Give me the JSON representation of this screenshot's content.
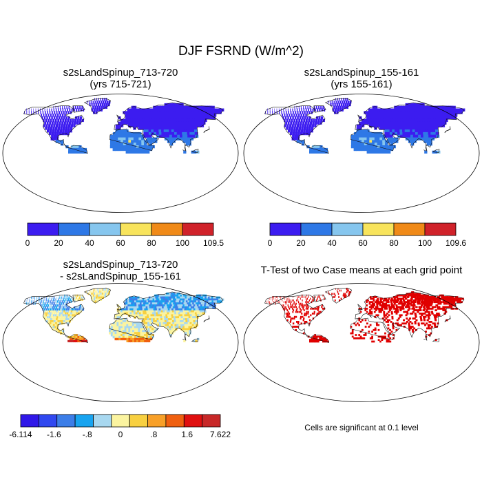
{
  "figure": {
    "title": "DJF FSRND (W/m^2)",
    "note": "Cells are significant at 0.1 level"
  },
  "chart_data": [
    {
      "type": "heatmap",
      "title": "s2sLandSpinup_713-720",
      "subtitle": "(yrs 715-721)",
      "projection": "robinson",
      "colorbar": {
        "labels": [
          "0",
          "20",
          "40",
          "60",
          "80",
          "100",
          "109.5"
        ],
        "colors": [
          "#3c1cf0",
          "#2e78e6",
          "#86c6ee",
          "#f8e45c",
          "#f08a18",
          "#d0222a"
        ]
      }
    },
    {
      "type": "heatmap",
      "title": "s2sLandSpinup_155-161",
      "subtitle": "(yrs 155-161)",
      "projection": "robinson",
      "colorbar": {
        "labels": [
          "0",
          "20",
          "40",
          "60",
          "80",
          "100",
          "109.6"
        ],
        "colors": [
          "#3c1cf0",
          "#2e78e6",
          "#86c6ee",
          "#f8e45c",
          "#f08a18",
          "#d0222a"
        ]
      }
    },
    {
      "type": "heatmap",
      "title": "s2sLandSpinup_713-720",
      "subtitle": "- s2sLandSpinup_155-161",
      "projection": "robinson",
      "colorbar": {
        "labels": [
          "-6.114",
          "-1.6",
          "-.8",
          "0",
          ".8",
          "1.6",
          "7.622"
        ],
        "colors": [
          "#3018e8",
          "#3048f0",
          "#3c7ee8",
          "#18a4f0",
          "#a8d8f0",
          "#fbf4a0",
          "#f8d040",
          "#f8a028",
          "#f06010",
          "#e01010",
          "#c82828"
        ]
      }
    },
    {
      "type": "heatmap",
      "title": "T-Test of two Case means at each grid point",
      "projection": "robinson",
      "colors": {
        "significant": "#e00000"
      }
    }
  ]
}
